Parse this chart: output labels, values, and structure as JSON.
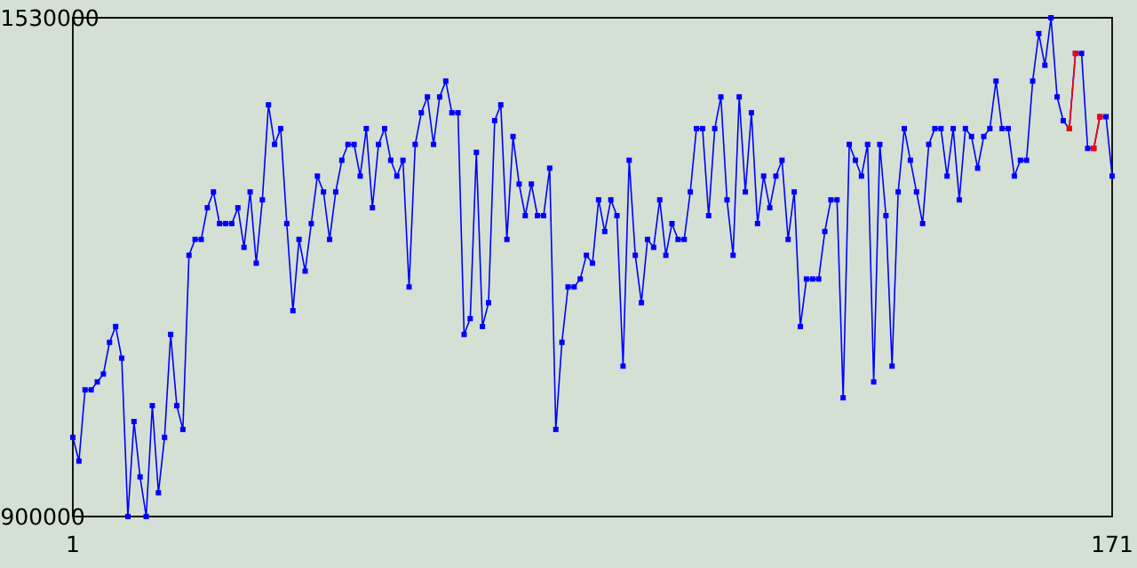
{
  "chart_data": {
    "type": "line",
    "x": [
      1,
      2,
      3,
      4,
      5,
      6,
      7,
      8,
      9,
      10,
      11,
      12,
      13,
      14,
      15,
      16,
      17,
      18,
      19,
      20,
      21,
      22,
      23,
      24,
      25,
      26,
      27,
      28,
      29,
      30,
      31,
      32,
      33,
      34,
      35,
      36,
      37,
      38,
      39,
      40,
      41,
      42,
      43,
      44,
      45,
      46,
      47,
      48,
      49,
      50,
      51,
      52,
      53,
      54,
      55,
      56,
      57,
      58,
      59,
      60,
      61,
      62,
      63,
      64,
      65,
      66,
      67,
      68,
      69,
      70,
      71,
      72,
      73,
      74,
      75,
      76,
      77,
      78,
      79,
      80,
      81,
      82,
      83,
      84,
      85,
      86,
      87,
      88,
      89,
      90,
      91,
      92,
      93,
      94,
      95,
      96,
      97,
      98,
      99,
      100,
      101,
      102,
      103,
      104,
      105,
      106,
      107,
      108,
      109,
      110,
      111,
      112,
      113,
      114,
      115,
      116,
      117,
      118,
      119,
      120,
      121,
      122,
      123,
      124,
      125,
      126,
      127,
      128,
      129,
      130,
      131,
      132,
      133,
      134,
      135,
      136,
      137,
      138,
      139,
      140,
      141,
      142,
      143,
      144,
      145,
      146,
      147,
      148,
      149,
      150,
      151,
      152,
      153,
      154,
      155,
      156,
      157,
      158,
      159,
      160,
      161,
      162,
      163,
      164,
      165,
      166,
      167,
      168,
      169,
      170,
      171
    ],
    "xlim": [
      1,
      171
    ],
    "ylim": [
      900000,
      1530000
    ],
    "xticks": [
      1,
      171
    ],
    "yticks": [
      900000,
      1530000
    ],
    "marker": "square",
    "series": [
      {
        "color": "#0000ff",
        "values": [
          1000000,
          970000,
          1060000,
          1060000,
          1070000,
          1080000,
          1120000,
          1140000,
          1100000,
          900000,
          1020000,
          950000,
          900000,
          1040000,
          930000,
          1000000,
          1130000,
          1040000,
          1010000,
          1230000,
          1250000,
          1250000,
          1290000,
          1310000,
          1270000,
          1270000,
          1270000,
          1290000,
          1240000,
          1310000,
          1220000,
          1300000,
          1420000,
          1370000,
          1390000,
          1270000,
          1160000,
          1250000,
          1210000,
          1270000,
          1330000,
          1310000,
          1250000,
          1310000,
          1350000,
          1370000,
          1370000,
          1330000,
          1390000,
          1290000,
          1370000,
          1390000,
          1350000,
          1330000,
          1350000,
          1190000,
          1370000,
          1410000,
          1430000,
          1370000,
          1430000,
          1450000,
          1410000,
          1410000,
          1130000,
          1150000,
          1360000,
          1140000,
          1170000,
          1400000,
          1420000,
          1250000,
          1380000,
          1320000,
          1280000,
          1320000,
          1280000,
          1280000,
          1340000,
          1010000,
          1120000,
          1190000,
          1190000,
          1200000,
          1230000,
          1220000,
          1300000,
          1260000,
          1300000,
          1280000,
          1090000,
          1350000,
          1230000,
          1170000,
          1250000,
          1240000,
          1300000,
          1230000,
          1270000,
          1250000,
          1250000,
          1310000,
          1390000,
          1390000,
          1280000,
          1390000,
          1430000,
          1300000,
          1230000,
          1430000,
          1310000,
          1410000,
          1270000,
          1330000,
          1290000,
          1330000,
          1350000,
          1250000,
          1310000,
          1140000,
          1200000,
          1200000,
          1200000,
          1260000,
          1300000,
          1300000,
          1050000,
          1370000,
          1350000,
          1330000,
          1370000,
          1070000,
          1370000,
          1280000,
          1090000,
          1310000,
          1390000,
          1350000,
          1310000,
          1270000,
          1370000,
          1390000,
          1390000,
          1330000,
          1390000,
          1300000,
          1390000,
          1380000,
          1340000,
          1380000,
          1390000,
          1450000,
          1390000,
          1390000,
          1330000,
          1350000,
          1350000,
          1450000,
          1510000,
          1470000,
          1530000,
          1430000,
          1400000,
          1390000,
          1485000,
          1485000,
          1365000,
          1365000,
          1405000,
          1405000,
          1330000
        ]
      },
      {
        "color": "#ff0000",
        "x": [
          164,
          165,
          166,
          168,
          169
        ],
        "values": [
          1390000,
          1485000,
          null,
          1365000,
          1405000
        ]
      }
    ]
  }
}
